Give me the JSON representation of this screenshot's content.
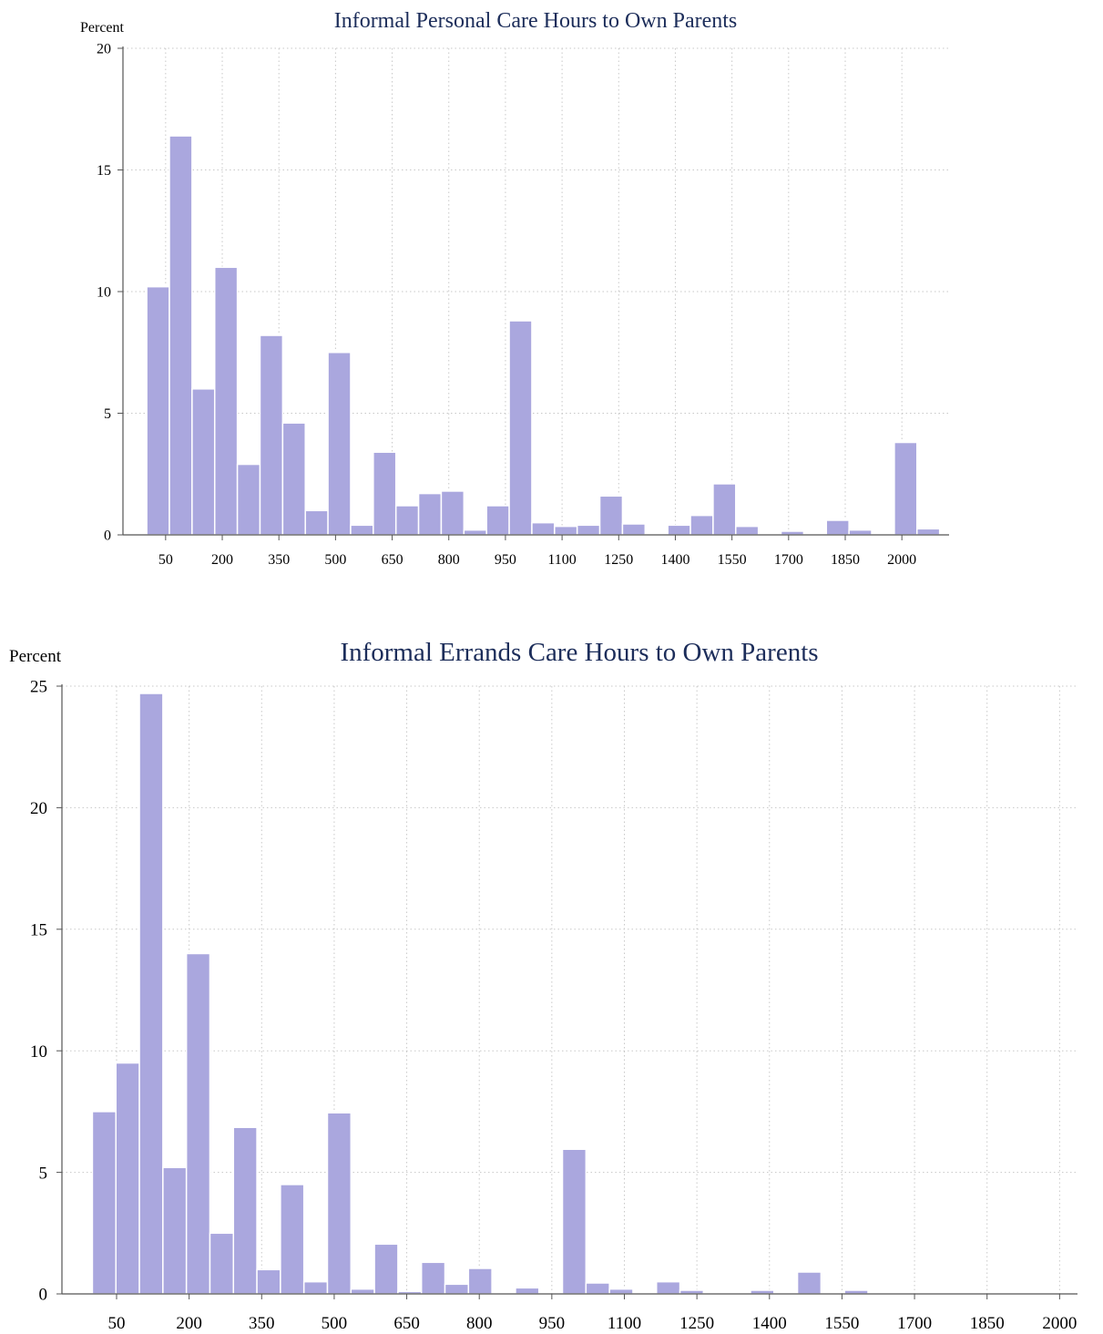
{
  "colors": {
    "bar_fill": "#aaa7de",
    "bar_stroke": "#ffffff",
    "title": "#1c2d5a",
    "text": "#000000",
    "axis": "#555555",
    "grid": "#c8c8c8",
    "background": "#ffffff"
  },
  "chart_data": [
    {
      "type": "bar",
      "title": "Informal Personal Care Hours to Own Parents",
      "ylabel": "Percent",
      "xlabel": "",
      "ylim": [
        0,
        20
      ],
      "xlim": [
        -63,
        2125
      ],
      "yticks": [
        0,
        5,
        10,
        15,
        20
      ],
      "xticks": [
        50,
        200,
        350,
        500,
        650,
        800,
        950,
        1100,
        1250,
        1400,
        1550,
        1700,
        1850,
        2000
      ],
      "grid": true,
      "bin_width": 60,
      "x": [
        30,
        90,
        150,
        210,
        270,
        330,
        390,
        450,
        510,
        570,
        630,
        690,
        750,
        810,
        870,
        930,
        990,
        1050,
        1110,
        1170,
        1230,
        1290,
        1350,
        1410,
        1470,
        1530,
        1590,
        1650,
        1710,
        1770,
        1830,
        1890,
        1950,
        2010,
        2070
      ],
      "values": [
        10.2,
        16.4,
        6.0,
        11.0,
        2.9,
        8.2,
        4.6,
        1.0,
        7.5,
        0.4,
        3.4,
        1.2,
        1.7,
        1.8,
        0.2,
        1.2,
        8.8,
        0.5,
        0.35,
        0.4,
        1.6,
        0.45,
        0.0,
        0.4,
        0.8,
        2.1,
        0.35,
        0.0,
        0.15,
        0.0,
        0.6,
        0.2,
        0.0,
        3.8,
        0.25
      ]
    },
    {
      "type": "bar",
      "title": "Informal Errands Care Hours to Own Parents",
      "ylabel": "Percent",
      "xlabel": "",
      "ylim": [
        0,
        25
      ],
      "xlim": [
        -63,
        2037
      ],
      "yticks": [
        0,
        5,
        10,
        15,
        20,
        25
      ],
      "xticks": [
        50,
        200,
        350,
        500,
        650,
        800,
        950,
        1100,
        1250,
        1400,
        1550,
        1700,
        1850,
        2000
      ],
      "grid": true,
      "bin_width": 48.6,
      "x": [
        24.3,
        72.9,
        121.5,
        170.1,
        218.7,
        267.3,
        315.9,
        364.5,
        413.1,
        461.7,
        510.3,
        558.9,
        607.5,
        656.1,
        704.7,
        753.3,
        801.9,
        850.5,
        899.1,
        947.7,
        996.3,
        1044.9,
        1093.5,
        1142.1,
        1190.7,
        1239.3,
        1287.9,
        1336.5,
        1385.1,
        1433.7,
        1482.3,
        1530.9,
        1579.5
      ],
      "values": [
        7.5,
        9.5,
        24.7,
        5.2,
        14.0,
        2.5,
        6.85,
        1.0,
        4.5,
        0.5,
        7.45,
        0.2,
        2.05,
        0.1,
        1.3,
        0.4,
        1.05,
        0.0,
        0.25,
        0.0,
        5.95,
        0.45,
        0.2,
        0.0,
        0.5,
        0.15,
        0.05,
        0.0,
        0.15,
        0.05,
        0.9,
        0.0,
        0.15
      ]
    }
  ]
}
